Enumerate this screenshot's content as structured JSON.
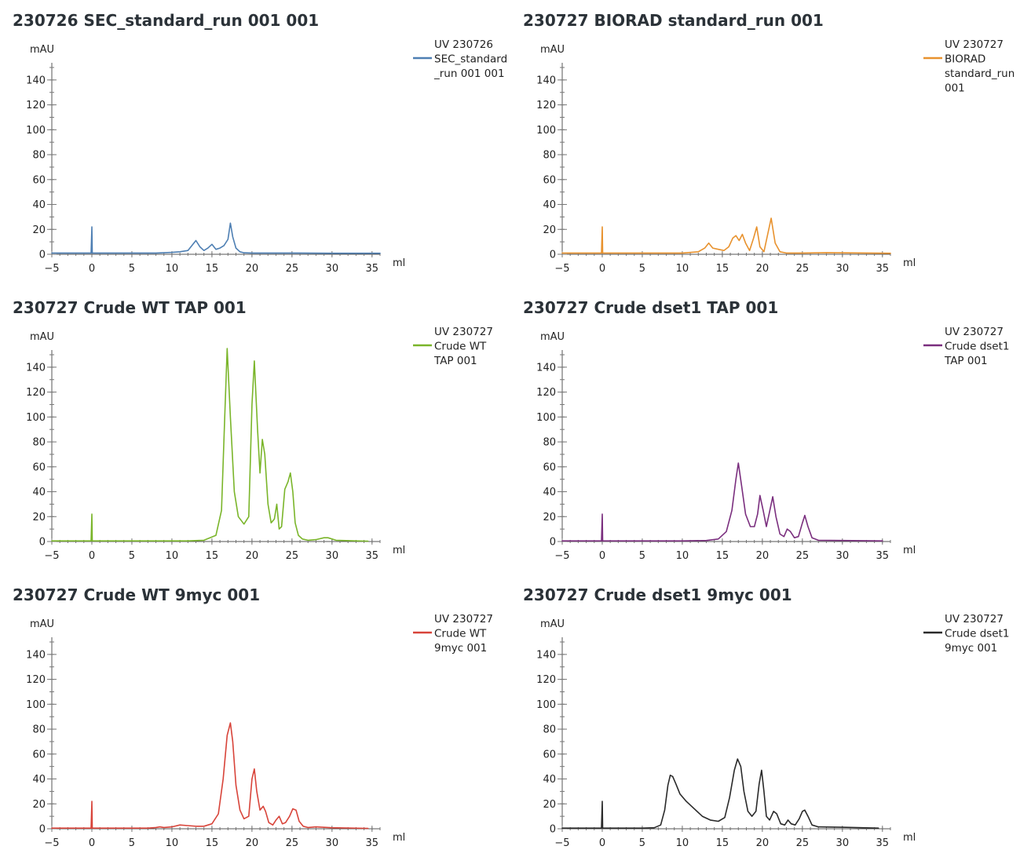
{
  "chart_data": [
    {
      "type": "line",
      "title": "230726 SEC_standard_run 001 001",
      "xlabel": "ml",
      "ylabel": "mAU",
      "xlim": [
        -5,
        36
      ],
      "ylim": [
        0,
        150
      ],
      "xticks": [
        -5,
        0,
        5,
        10,
        15,
        20,
        25,
        30,
        35
      ],
      "yticks": [
        0,
        20,
        40,
        60,
        80,
        100,
        120,
        140
      ],
      "grid": false,
      "legend_position": "top-right",
      "series": [
        {
          "name": "UV 230726 SEC_standard _run 001 001",
          "legend_lines": [
            "UV 230726",
            "SEC_standard",
            "_run 001 001"
          ],
          "color": "#4e7fb3",
          "x": [
            -5,
            -0.1,
            0,
            0.05,
            0.1,
            8,
            10,
            11,
            12,
            12.5,
            13,
            13.5,
            14,
            14.5,
            15,
            15.5,
            16,
            16.5,
            17,
            17.3,
            17.6,
            18,
            18.5,
            19,
            20,
            25,
            30,
            36
          ],
          "y": [
            1,
            1,
            22,
            1,
            1,
            1,
            1.5,
            2,
            3,
            7,
            11,
            6,
            3,
            5,
            8,
            4,
            5,
            7,
            12,
            25,
            14,
            5,
            2,
            1.2,
            1,
            1,
            0.8,
            0.8
          ]
        }
      ]
    },
    {
      "type": "line",
      "title": "230727 BIORAD standard_run 001",
      "xlabel": "ml",
      "ylabel": "mAU",
      "xlim": [
        -5,
        36
      ],
      "ylim": [
        0,
        150
      ],
      "xticks": [
        -5,
        0,
        5,
        10,
        15,
        20,
        25,
        30,
        35
      ],
      "yticks": [
        0,
        20,
        40,
        60,
        80,
        100,
        120,
        140
      ],
      "grid": false,
      "legend_position": "top-right",
      "series": [
        {
          "name": "UV 230727 BIORAD standard_run 001",
          "legend_lines": [
            "UV 230727",
            "BIORAD",
            "standard_run",
            "001"
          ],
          "color": "#e8922e",
          "x": [
            -5,
            -0.1,
            0,
            0.05,
            0.1,
            10,
            12,
            12.8,
            13.3,
            13.8,
            14.5,
            15.2,
            15.8,
            16.3,
            16.7,
            17.1,
            17.5,
            17.9,
            18.4,
            18.9,
            19.3,
            19.7,
            20.2,
            20.7,
            21.1,
            21.6,
            22.2,
            23,
            25,
            28,
            36
          ],
          "y": [
            1,
            1,
            22,
            1,
            1,
            1,
            2,
            5,
            9,
            5,
            4,
            3,
            6,
            13,
            15,
            11,
            16,
            9,
            3,
            13,
            22,
            6,
            2,
            17,
            29,
            9,
            2,
            1,
            1,
            1.3,
            0.8
          ]
        }
      ]
    },
    {
      "type": "line",
      "title": "230727 Crude WT TAP 001",
      "xlabel": "ml",
      "ylabel": "mAU",
      "xlim": [
        -5,
        36
      ],
      "ylim": [
        0,
        150
      ],
      "xticks": [
        -5,
        0,
        5,
        10,
        15,
        20,
        25,
        30,
        35
      ],
      "yticks": [
        0,
        20,
        40,
        60,
        80,
        100,
        120,
        140
      ],
      "grid": false,
      "legend_position": "top-right",
      "series": [
        {
          "name": "UV 230727 Crude WT TAP 001",
          "legend_lines": [
            "UV 230727",
            "Crude WT",
            "TAP 001"
          ],
          "color": "#7ab52a",
          "x": [
            -5,
            -0.1,
            0,
            0.05,
            0.1,
            12,
            14,
            15.5,
            16.2,
            16.6,
            16.9,
            17.3,
            17.8,
            18.3,
            19,
            19.6,
            20,
            20.3,
            20.7,
            21,
            21.3,
            21.6,
            22,
            22.4,
            22.8,
            23.1,
            23.4,
            23.7,
            24.1,
            24.5,
            24.8,
            25.1,
            25.4,
            25.8,
            26.3,
            27,
            28,
            29,
            29.5,
            30.5,
            33,
            34.5
          ],
          "y": [
            0.5,
            0.5,
            22,
            0.5,
            0.5,
            0.5,
            1,
            5,
            25,
            100,
            155,
            100,
            40,
            20,
            14,
            20,
            110,
            145,
            90,
            55,
            82,
            70,
            30,
            15,
            18,
            30,
            10,
            12,
            42,
            48,
            55,
            40,
            15,
            5,
            2,
            1,
            1.5,
            3,
            3,
            1,
            0.5,
            0.3
          ]
        }
      ]
    },
    {
      "type": "line",
      "title": "230727 Crude dset1 TAP 001",
      "xlabel": "ml",
      "ylabel": "mAU",
      "xlim": [
        -5,
        36
      ],
      "ylim": [
        0,
        150
      ],
      "xticks": [
        -5,
        0,
        5,
        10,
        15,
        20,
        25,
        30,
        35
      ],
      "yticks": [
        0,
        20,
        40,
        60,
        80,
        100,
        120,
        140
      ],
      "grid": false,
      "legend_position": "top-right",
      "series": [
        {
          "name": "UV 230727 Crude dset1 TAP 001",
          "legend_lines": [
            "UV 230727",
            "Crude dset1",
            "TAP 001"
          ],
          "color": "#7a2e7e",
          "x": [
            -5,
            -0.1,
            0,
            0.05,
            0.1,
            10,
            13,
            14.5,
            15.5,
            16.2,
            16.7,
            17,
            17.4,
            17.9,
            18.5,
            19,
            19.4,
            19.7,
            20.1,
            20.5,
            20.9,
            21.3,
            21.7,
            22.2,
            22.7,
            23.1,
            23.5,
            24,
            24.5,
            25,
            25.3,
            25.7,
            26.2,
            27,
            30,
            35
          ],
          "y": [
            0.5,
            0.5,
            22,
            0.5,
            0.5,
            0.5,
            0.8,
            2,
            8,
            25,
            50,
            63,
            45,
            22,
            12,
            12,
            22,
            37,
            25,
            12,
            24,
            36,
            20,
            6,
            4,
            10,
            8,
            3,
            4,
            15,
            21,
            12,
            3,
            1,
            0.8,
            0.5
          ]
        }
      ]
    },
    {
      "type": "line",
      "title": "230727 Crude WT 9myc 001",
      "xlabel": "ml",
      "ylabel": "mAU",
      "xlim": [
        -5,
        36
      ],
      "ylim": [
        0,
        150
      ],
      "xticks": [
        -5,
        0,
        5,
        10,
        15,
        20,
        25,
        30,
        35
      ],
      "yticks": [
        0,
        20,
        40,
        60,
        80,
        100,
        120,
        140
      ],
      "grid": false,
      "legend_position": "top-right",
      "series": [
        {
          "name": "UV 230727 Crude WT 9myc 001",
          "legend_lines": [
            "UV 230727",
            "Crude WT",
            "9myc 001"
          ],
          "color": "#d8443a",
          "x": [
            -5,
            -0.1,
            0,
            0.05,
            0.1,
            7,
            8,
            8.5,
            9,
            10,
            11,
            12,
            13,
            14,
            15,
            15.8,
            16.4,
            16.9,
            17.3,
            17.6,
            18,
            18.5,
            19,
            19.6,
            20,
            20.3,
            20.6,
            21,
            21.4,
            21.7,
            22.1,
            22.6,
            23,
            23.4,
            23.8,
            24.2,
            24.7,
            25.1,
            25.5,
            25.9,
            26.4,
            27,
            28,
            30,
            34.5
          ],
          "y": [
            0.5,
            0.5,
            22,
            0.5,
            0.5,
            0.5,
            1,
            1.5,
            1,
            1.5,
            3,
            2.5,
            2,
            2,
            4,
            12,
            40,
            75,
            85,
            70,
            35,
            15,
            8,
            10,
            40,
            48,
            30,
            15,
            18,
            14,
            5,
            3,
            7,
            10,
            4,
            5,
            10,
            16,
            15,
            6,
            2,
            1,
            1.5,
            0.8,
            0.3
          ]
        }
      ]
    },
    {
      "type": "line",
      "title": "230727 Crude dset1 9myc 001",
      "xlabel": "ml",
      "ylabel": "mAU",
      "xlim": [
        -5,
        36
      ],
      "ylim": [
        0,
        150
      ],
      "xticks": [
        -5,
        0,
        5,
        10,
        15,
        20,
        25,
        30,
        35
      ],
      "yticks": [
        0,
        20,
        40,
        60,
        80,
        100,
        120,
        140
      ],
      "grid": false,
      "legend_position": "top-right",
      "series": [
        {
          "name": "UV 230727 Crude dset1 9myc 001",
          "legend_lines": [
            "UV 230727",
            "Crude dset1",
            "9myc 001"
          ],
          "color": "#2a2a2a",
          "x": [
            -5,
            -0.1,
            0,
            0.05,
            0.1,
            5,
            6.5,
            7.3,
            7.8,
            8.2,
            8.5,
            8.8,
            9.2,
            9.7,
            10.5,
            11.5,
            12.5,
            13.5,
            14.5,
            15.3,
            15.9,
            16.5,
            16.9,
            17.3,
            17.7,
            18.2,
            18.7,
            19.2,
            19.6,
            19.9,
            20.2,
            20.5,
            20.9,
            21.4,
            21.8,
            22.3,
            22.8,
            23.2,
            23.6,
            24.1,
            24.6,
            25,
            25.3,
            25.7,
            26.2,
            27,
            30,
            34.5
          ],
          "y": [
            0.5,
            0.5,
            22,
            0.5,
            0.5,
            0.5,
            0.8,
            3,
            15,
            35,
            43,
            42,
            36,
            28,
            22,
            16,
            10,
            7,
            6,
            9,
            25,
            47,
            56,
            50,
            30,
            14,
            10,
            14,
            36,
            47,
            30,
            10,
            7,
            14,
            12,
            4,
            3,
            7,
            4,
            3,
            8,
            14,
            15,
            10,
            3,
            1.5,
            1.2,
            0.5
          ]
        }
      ]
    }
  ]
}
